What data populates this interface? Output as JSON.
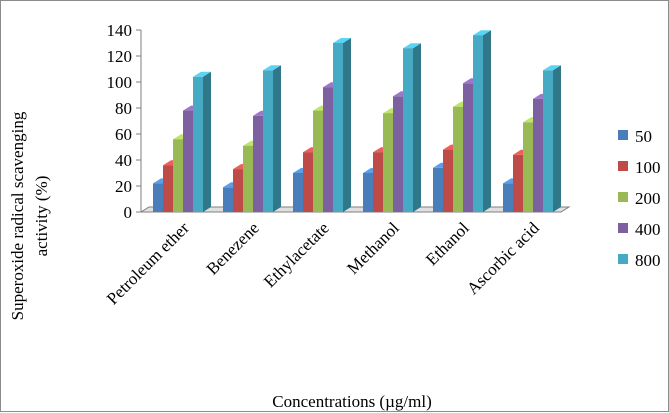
{
  "chart_data": {
    "type": "bar",
    "categories": [
      "Petroleum ether",
      "Benezene",
      "Ethylacetate",
      "Methanol",
      "Ethanol",
      "Ascorbic acid"
    ],
    "series": [
      {
        "name": "50",
        "values": [
          22,
          19,
          30,
          30,
          34,
          22
        ],
        "color": "#4a7ebb"
      },
      {
        "name": "100",
        "values": [
          36,
          33,
          46,
          46,
          48,
          44
        ],
        "color": "#be4b48"
      },
      {
        "name": "200",
        "values": [
          56,
          51,
          78,
          76,
          81,
          69
        ],
        "color": "#98b954"
      },
      {
        "name": "400",
        "values": [
          78,
          74,
          96,
          89,
          99,
          87
        ],
        "color": "#7d60a0"
      },
      {
        "name": "800",
        "values": [
          104,
          109,
          130,
          126,
          136,
          109
        ],
        "color": "#46aac5"
      }
    ],
    "ylim": [
      0,
      140
    ],
    "yticks": [
      0,
      20,
      40,
      60,
      80,
      100,
      120,
      140
    ],
    "xlabel": "Concentrations (µg/ml)",
    "ylabel_line1": "Superoxide radical scavenging",
    "ylabel_line2": "activity (%)",
    "legend_position": "right",
    "grid": false,
    "style": "3d-column"
  }
}
